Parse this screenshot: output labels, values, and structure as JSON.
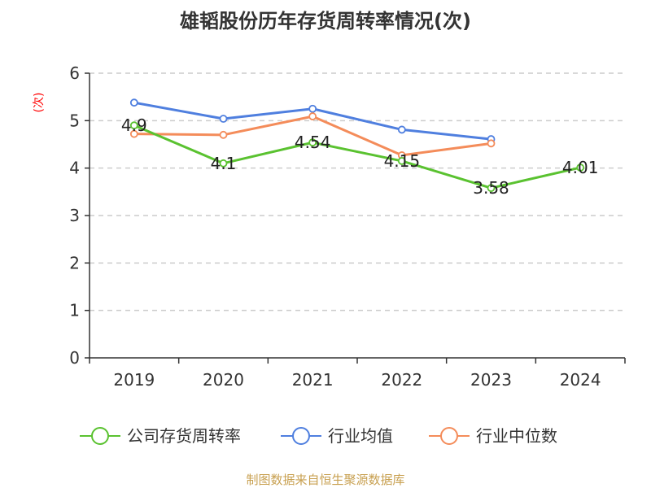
{
  "chart_data": {
    "type": "line",
    "title": "雄韬股份历年存货周转率情况(次)",
    "ylabel": "(次)",
    "categories": [
      "2019",
      "2020",
      "2021",
      "2022",
      "2023",
      "2024"
    ],
    "ylim": [
      0,
      6
    ],
    "yticks": [
      "0",
      "1",
      "2",
      "3",
      "4",
      "5",
      "6"
    ],
    "grid": true,
    "legend_position": "bottom",
    "series": [
      {
        "name": "公司存货周转率",
        "color": "#5ac230",
        "values": [
          4.9,
          4.1,
          4.54,
          4.15,
          3.58,
          4.01
        ],
        "labels": [
          "4.9",
          "4.1",
          "4.54",
          "4.15",
          "3.58",
          "4.01"
        ]
      },
      {
        "name": "行业均值",
        "color": "#4f7fdf",
        "values": [
          5.38,
          5.04,
          5.25,
          4.81,
          4.61,
          null
        ],
        "labels": []
      },
      {
        "name": "行业中位数",
        "color": "#f48c5a",
        "values": [
          4.72,
          4.7,
          5.09,
          4.27,
          4.52,
          null
        ],
        "labels": []
      }
    ]
  },
  "source": "制图数据来自恒生聚源数据库",
  "colors": {
    "title": "#333333",
    "ylabel": "#ff0000",
    "grid": "#cccccc",
    "axis": "#333333",
    "source": "#c8a050"
  }
}
